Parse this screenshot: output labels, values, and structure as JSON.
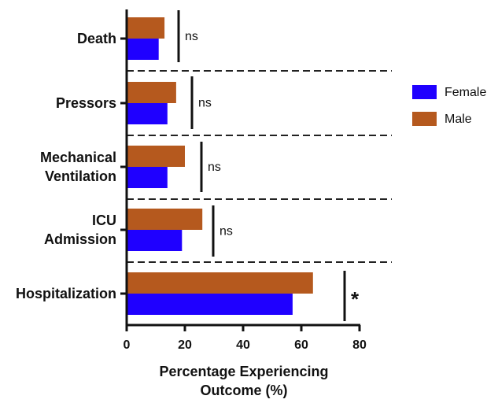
{
  "chart_data": {
    "type": "bar",
    "orientation": "horizontal",
    "categories": [
      [
        "Death"
      ],
      [
        "Pressors"
      ],
      [
        "Mechanical",
        "Ventilation"
      ],
      [
        "ICU",
        "Admission"
      ],
      [
        "Hospitalization"
      ]
    ],
    "series": [
      {
        "name": "Male",
        "color": "#b5591e",
        "values": [
          13,
          17,
          20,
          26,
          64
        ]
      },
      {
        "name": "Female",
        "color": "#1f00ff",
        "values": [
          11,
          14,
          14,
          19,
          57
        ]
      }
    ],
    "significance": [
      "ns",
      "ns",
      "ns",
      "ns",
      "*"
    ],
    "xlim": [
      0,
      80
    ],
    "xticks": [
      "0",
      "20",
      "40",
      "60",
      "80"
    ],
    "xlabel": [
      "Percentage Experiencing",
      "Outcome (%)"
    ],
    "legend": [
      {
        "name": "Female",
        "color": "#1f00ff"
      },
      {
        "name": "Male",
        "color": "#b5591e"
      }
    ],
    "legend_position": "right",
    "grid": false,
    "separators": "dashed lines between categories"
  }
}
